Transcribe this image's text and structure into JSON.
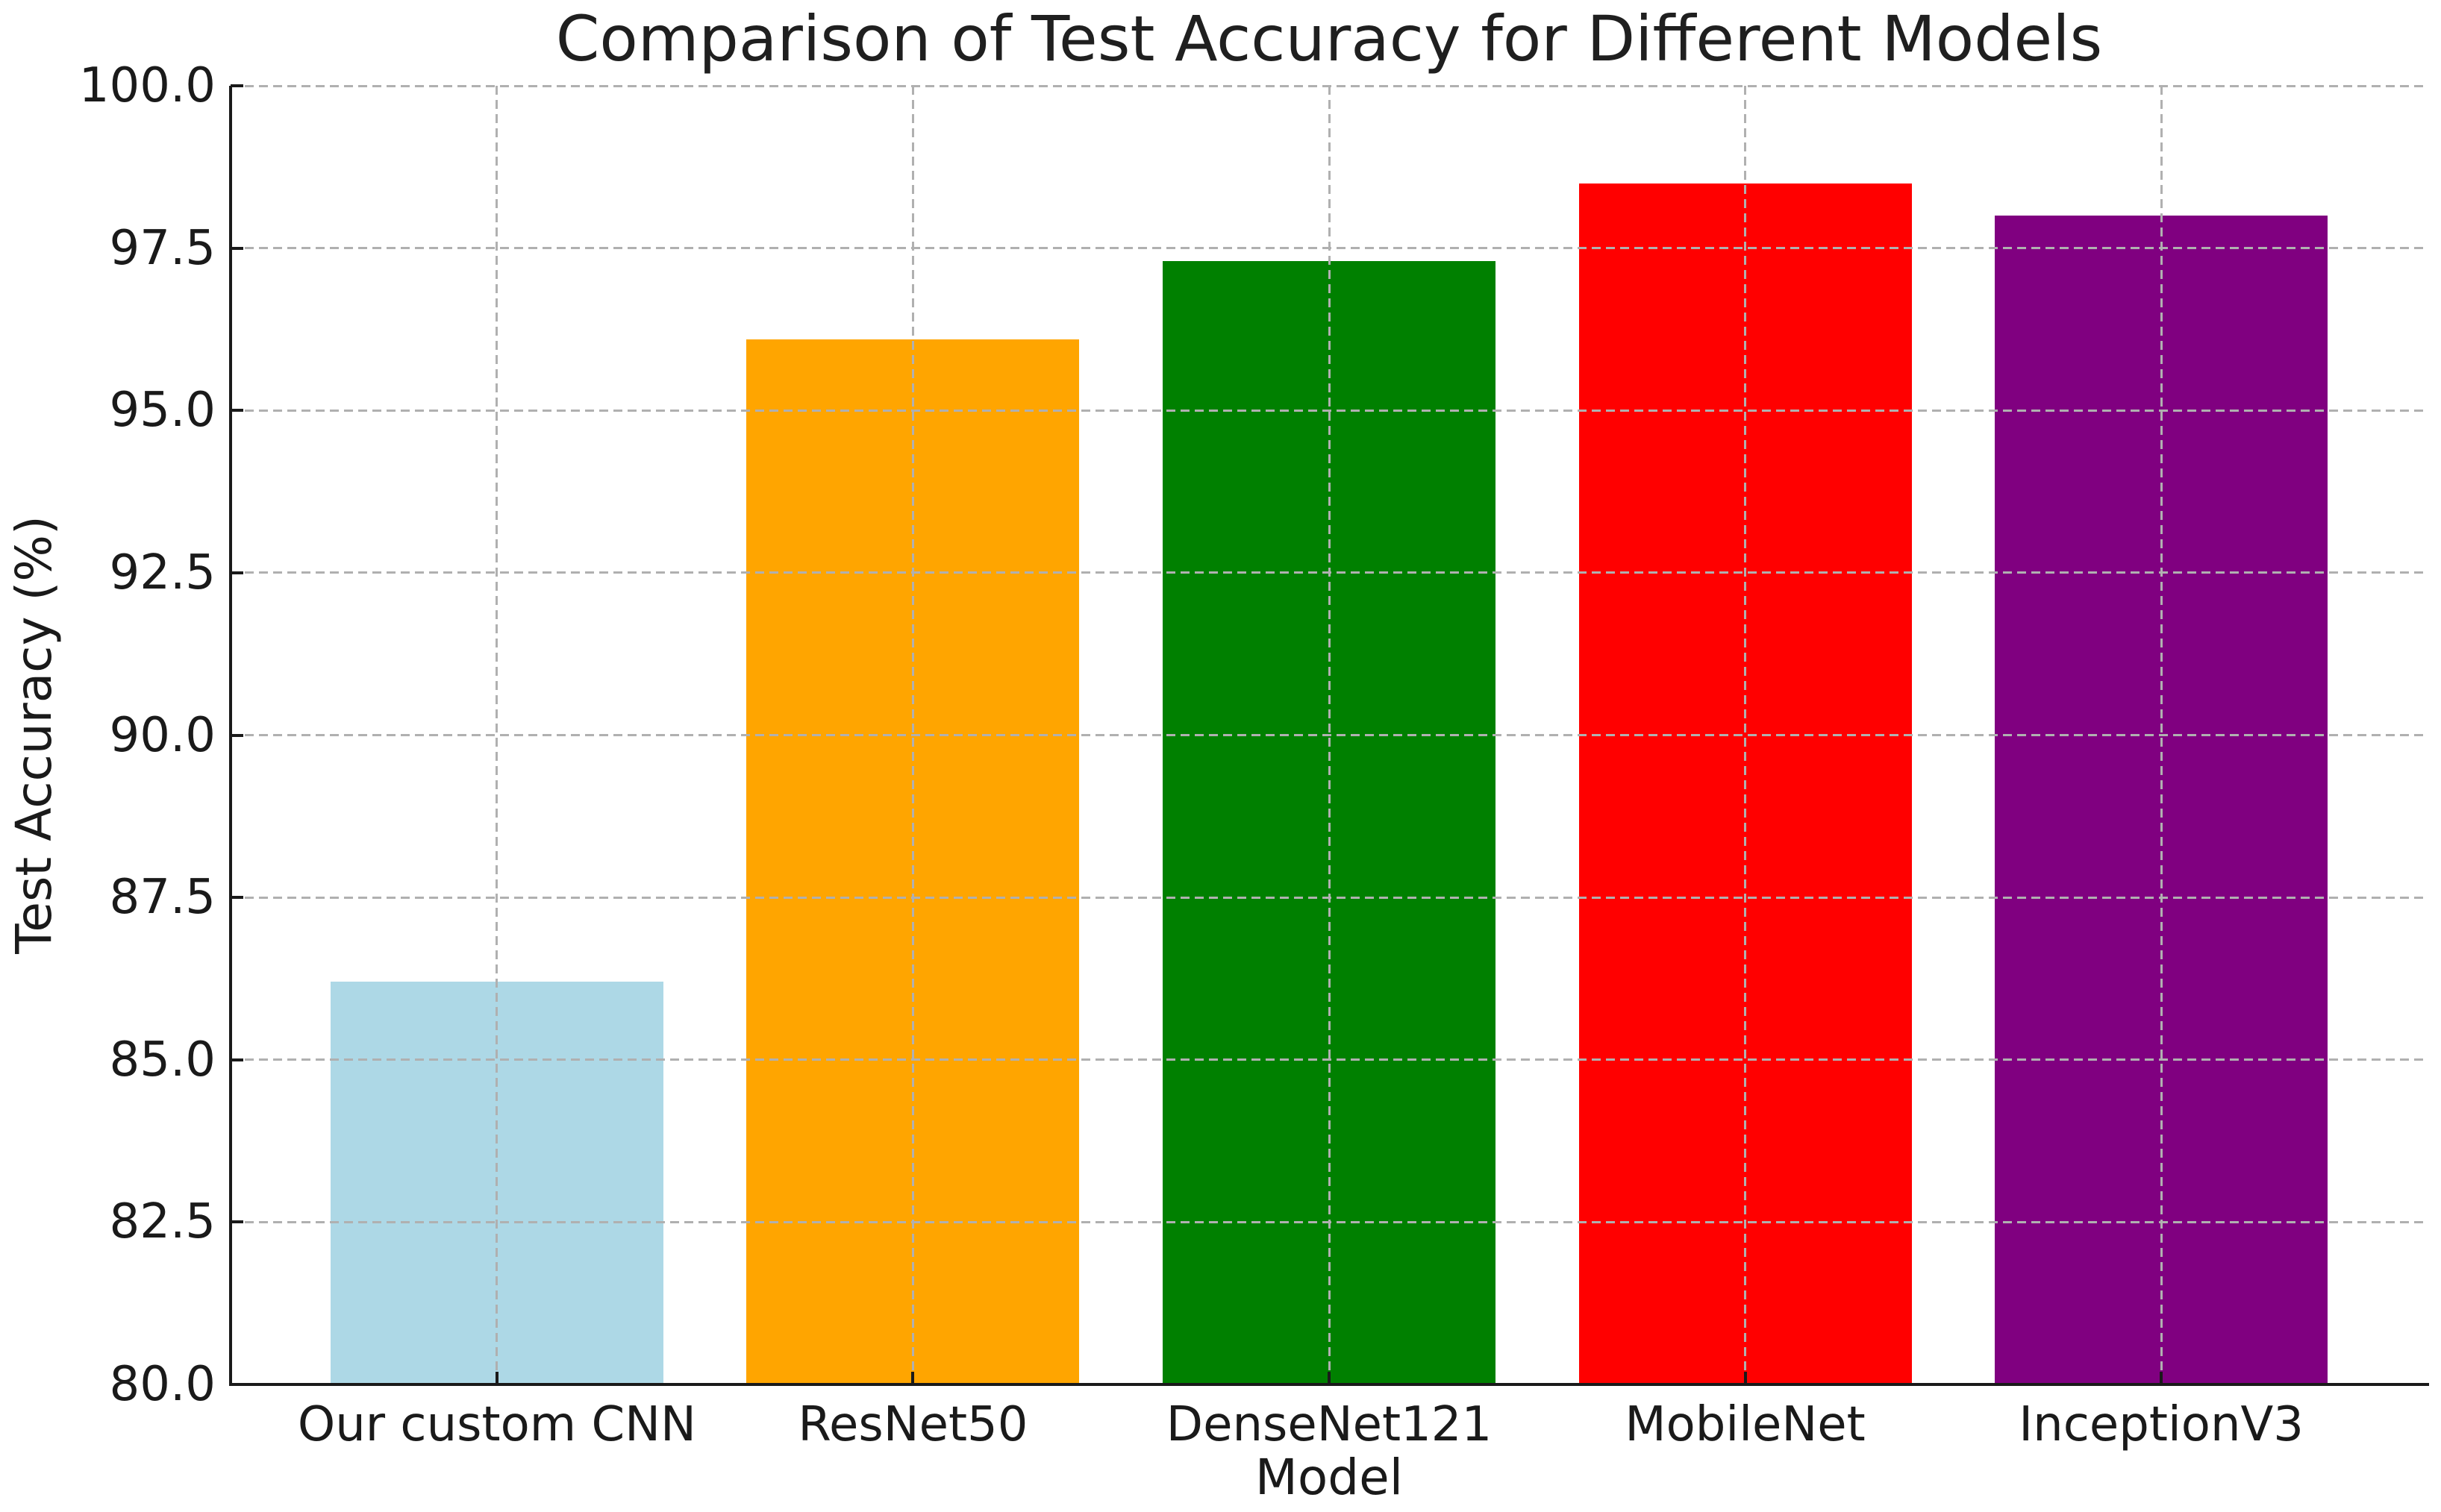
{
  "figure": {
    "background": "#ffffff",
    "text_color": "#1a1a1a",
    "spine_color": "#1a1a1a"
  },
  "chart_data": {
    "type": "bar",
    "title": "Comparison of Test Accuracy for Different Models",
    "xlabel": "Model",
    "ylabel": "Test Accuracy (%)",
    "categories": [
      "Our custom CNN",
      "ResNet50",
      "DenseNet121",
      "MobileNet",
      "InceptionV3"
    ],
    "values": [
      86.2,
      96.1,
      97.3,
      98.5,
      98.0
    ],
    "bar_colors": [
      "#ADD8E6",
      "#FFA500",
      "#008000",
      "#FF0000",
      "#800080"
    ],
    "ylim": [
      80.0,
      100.0
    ],
    "ytick_labels": [
      "80.0",
      "82.5",
      "85.0",
      "87.5",
      "90.0",
      "92.5",
      "95.0",
      "97.5",
      "100.0"
    ],
    "xlim": [
      -0.64,
      4.64
    ],
    "bar_width": 0.8,
    "grid": "dashed",
    "grid_color": "#b0b0b0",
    "legend": "none"
  }
}
